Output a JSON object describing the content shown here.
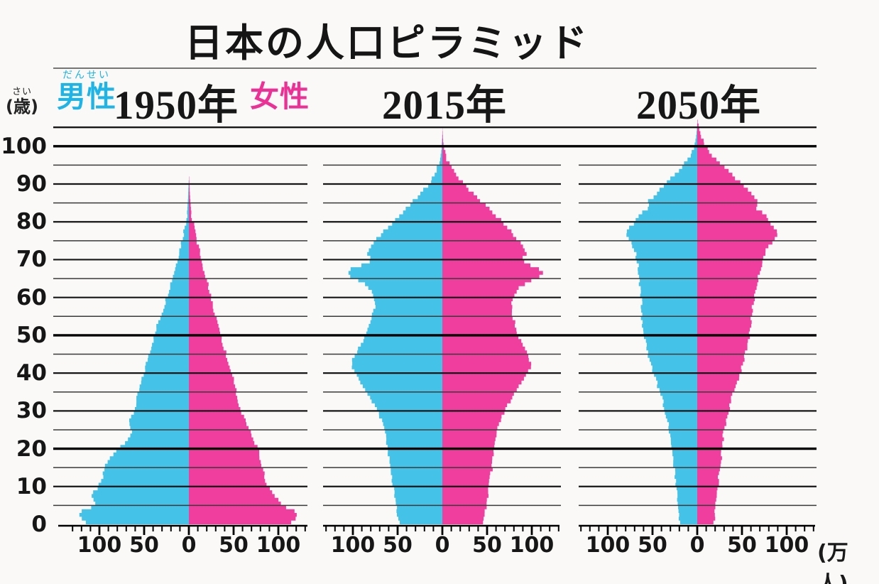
{
  "title": "日本の人口ピラミッド",
  "legend": {
    "male": {
      "label": "男性",
      "furigana": "だんせい",
      "text_color": "#1db4e8"
    },
    "female": {
      "label": "女性",
      "text_color": "#ee2f96"
    }
  },
  "panels": [
    {
      "year_label": "1950年"
    },
    {
      "year_label": "2015年"
    },
    {
      "year_label": "2050年"
    }
  ],
  "y_axis": {
    "unit_furigana": "さい",
    "unit_display": "(歳)",
    "tick_ages": [
      100,
      90,
      80,
      70,
      60,
      50,
      40,
      30,
      20,
      10,
      0
    ],
    "gridline_every": 5,
    "bold_ages": [
      100,
      50,
      20
    ],
    "max_age": 105
  },
  "x_axis": {
    "tick_values": [
      -100,
      -50,
      0,
      50,
      100
    ],
    "tick_labels": [
      "100",
      "50",
      "0",
      "50",
      "100"
    ],
    "minor_tick_value": 10,
    "unit": "(万人)"
  },
  "chart_data": {
    "type": "population-pyramid",
    "title": "日本の人口ピラミッド",
    "value_unit": "万人",
    "age_unit": "歳",
    "colors": {
      "male": "#45c2e8",
      "female": "#ef3e9d"
    },
    "age_axis": {
      "min": 0,
      "max": 105,
      "gridline_every": 5,
      "label_every": 10,
      "bold_gridlines_at": [
        100,
        50,
        20
      ]
    },
    "value_axis": {
      "tick_labels": [
        100,
        50,
        0,
        50,
        100
      ],
      "minor_tick": 10,
      "unit": "万人"
    },
    "pyramids": [
      {
        "year": "1950年",
        "male_points": [
          [
            0,
            112
          ],
          [
            1,
            118
          ],
          [
            2,
            122
          ],
          [
            3,
            123
          ],
          [
            4,
            116
          ],
          [
            5,
            104
          ],
          [
            6,
            106
          ],
          [
            8,
            108
          ],
          [
            10,
            101
          ],
          [
            12,
            96
          ],
          [
            14,
            95
          ],
          [
            16,
            93
          ],
          [
            18,
            86
          ],
          [
            20,
            79
          ],
          [
            22,
            70
          ],
          [
            24,
            64
          ],
          [
            26,
            67
          ],
          [
            28,
            65
          ],
          [
            30,
            61
          ],
          [
            33,
            58
          ],
          [
            36,
            55
          ],
          [
            40,
            50
          ],
          [
            44,
            46
          ],
          [
            48,
            41
          ],
          [
            50,
            38
          ],
          [
            53,
            35
          ],
          [
            56,
            30
          ],
          [
            60,
            25
          ],
          [
            64,
            20
          ],
          [
            68,
            15
          ],
          [
            72,
            11
          ],
          [
            76,
            7
          ],
          [
            80,
            3.5
          ],
          [
            83,
            1.8
          ],
          [
            86,
            1
          ],
          [
            88,
            0.6
          ],
          [
            90,
            0.3
          ],
          [
            91,
            0
          ]
        ],
        "female_points": [
          [
            0,
            112
          ],
          [
            1,
            117
          ],
          [
            2,
            121
          ],
          [
            3,
            121
          ],
          [
            4,
            114
          ],
          [
            5,
            103
          ],
          [
            6,
            102
          ],
          [
            8,
            95
          ],
          [
            10,
            89
          ],
          [
            12,
            85
          ],
          [
            14,
            83
          ],
          [
            16,
            81
          ],
          [
            18,
            79
          ],
          [
            20,
            77
          ],
          [
            22,
            72
          ],
          [
            24,
            69
          ],
          [
            26,
            66
          ],
          [
            28,
            62
          ],
          [
            30,
            58
          ],
          [
            33,
            55
          ],
          [
            36,
            52
          ],
          [
            40,
            48
          ],
          [
            44,
            43
          ],
          [
            48,
            38
          ],
          [
            50,
            36
          ],
          [
            53,
            33
          ],
          [
            56,
            29
          ],
          [
            60,
            25
          ],
          [
            64,
            21
          ],
          [
            68,
            16
          ],
          [
            72,
            12
          ],
          [
            76,
            8
          ],
          [
            80,
            4.5
          ],
          [
            83,
            2.5
          ],
          [
            86,
            1.5
          ],
          [
            88,
            1
          ],
          [
            90,
            0.6
          ],
          [
            91.5,
            0.3
          ],
          [
            92,
            0
          ]
        ]
      },
      {
        "year": "2015年",
        "male_points": [
          [
            0,
            48
          ],
          [
            3,
            50
          ],
          [
            5,
            51
          ],
          [
            8,
            53
          ],
          [
            10,
            55
          ],
          [
            13,
            57
          ],
          [
            15,
            59
          ],
          [
            18,
            60
          ],
          [
            20,
            61
          ],
          [
            23,
            63
          ],
          [
            25,
            65
          ],
          [
            28,
            69
          ],
          [
            30,
            73
          ],
          [
            33,
            80
          ],
          [
            36,
            88
          ],
          [
            38,
            93
          ],
          [
            40,
            98
          ],
          [
            42,
            102
          ],
          [
            44,
            100
          ],
          [
            46,
            95
          ],
          [
            48,
            90
          ],
          [
            50,
            87
          ],
          [
            52,
            83
          ],
          [
            54,
            80
          ],
          [
            56,
            77
          ],
          [
            58,
            75
          ],
          [
            60,
            76
          ],
          [
            62,
            79
          ],
          [
            64,
            90
          ],
          [
            65,
            100
          ],
          [
            66,
            106
          ],
          [
            67,
            105
          ],
          [
            68,
            98
          ],
          [
            69,
            85
          ],
          [
            70,
            79
          ],
          [
            71,
            82
          ],
          [
            72,
            84
          ],
          [
            74,
            78
          ],
          [
            76,
            71
          ],
          [
            78,
            64
          ],
          [
            80,
            55
          ],
          [
            82,
            46
          ],
          [
            84,
            38
          ],
          [
            86,
            30
          ],
          [
            88,
            22
          ],
          [
            90,
            15
          ],
          [
            92,
            10
          ],
          [
            94,
            6
          ],
          [
            96,
            3
          ],
          [
            98,
            1.5
          ],
          [
            100,
            0.7
          ],
          [
            102,
            0.3
          ],
          [
            103,
            0
          ]
        ],
        "female_points": [
          [
            0,
            46
          ],
          [
            3,
            48
          ],
          [
            5,
            49
          ],
          [
            8,
            51
          ],
          [
            10,
            52
          ],
          [
            13,
            54
          ],
          [
            15,
            56
          ],
          [
            18,
            57
          ],
          [
            20,
            58
          ],
          [
            23,
            60
          ],
          [
            25,
            62
          ],
          [
            28,
            66
          ],
          [
            30,
            70
          ],
          [
            33,
            77
          ],
          [
            36,
            85
          ],
          [
            38,
            90
          ],
          [
            40,
            95
          ],
          [
            42,
            99
          ],
          [
            44,
            97
          ],
          [
            46,
            93
          ],
          [
            48,
            88
          ],
          [
            50,
            85
          ],
          [
            52,
            82
          ],
          [
            54,
            80
          ],
          [
            56,
            78
          ],
          [
            58,
            77
          ],
          [
            60,
            79
          ],
          [
            62,
            83
          ],
          [
            64,
            95
          ],
          [
            65,
            106
          ],
          [
            66,
            113
          ],
          [
            67,
            112
          ],
          [
            68,
            104
          ],
          [
            69,
            93
          ],
          [
            70,
            88
          ],
          [
            71,
            92
          ],
          [
            72,
            94
          ],
          [
            74,
            88
          ],
          [
            76,
            82
          ],
          [
            78,
            75
          ],
          [
            80,
            67
          ],
          [
            82,
            58
          ],
          [
            84,
            50
          ],
          [
            86,
            41
          ],
          [
            88,
            32
          ],
          [
            90,
            24
          ],
          [
            92,
            17
          ],
          [
            94,
            11
          ],
          [
            96,
            6
          ],
          [
            98,
            3
          ],
          [
            100,
            1.5
          ],
          [
            102,
            0.7
          ],
          [
            104,
            0.3
          ],
          [
            105,
            0
          ]
        ]
      },
      {
        "year": "2050年",
        "male_points": [
          [
            0,
            20
          ],
          [
            3,
            21
          ],
          [
            5,
            22
          ],
          [
            8,
            23
          ],
          [
            10,
            24
          ],
          [
            13,
            25
          ],
          [
            15,
            26
          ],
          [
            18,
            28
          ],
          [
            20,
            29
          ],
          [
            23,
            30
          ],
          [
            25,
            31
          ],
          [
            28,
            34
          ],
          [
            30,
            36
          ],
          [
            33,
            39
          ],
          [
            35,
            42
          ],
          [
            38,
            46
          ],
          [
            40,
            49
          ],
          [
            43,
            52
          ],
          [
            45,
            55
          ],
          [
            48,
            58
          ],
          [
            50,
            60
          ],
          [
            53,
            61
          ],
          [
            55,
            62
          ],
          [
            58,
            62
          ],
          [
            60,
            63
          ],
          [
            63,
            64
          ],
          [
            65,
            65
          ],
          [
            68,
            66
          ],
          [
            70,
            68
          ],
          [
            72,
            69
          ],
          [
            74,
            73
          ],
          [
            76,
            78
          ],
          [
            77,
            79
          ],
          [
            78,
            77
          ],
          [
            80,
            70
          ],
          [
            82,
            63
          ],
          [
            83,
            58
          ],
          [
            84,
            52
          ],
          [
            85,
            56
          ],
          [
            86,
            52
          ],
          [
            88,
            44
          ],
          [
            90,
            35
          ],
          [
            92,
            27
          ],
          [
            94,
            19
          ],
          [
            96,
            12
          ],
          [
            98,
            7
          ],
          [
            100,
            3.5
          ],
          [
            102,
            1.5
          ],
          [
            104,
            0.6
          ],
          [
            106,
            0
          ]
        ],
        "female_points": [
          [
            0,
            19
          ],
          [
            3,
            20
          ],
          [
            5,
            21
          ],
          [
            8,
            22
          ],
          [
            10,
            23
          ],
          [
            13,
            24
          ],
          [
            15,
            25
          ],
          [
            18,
            27
          ],
          [
            20,
            28
          ],
          [
            23,
            29
          ],
          [
            25,
            30
          ],
          [
            28,
            33
          ],
          [
            30,
            35
          ],
          [
            33,
            38
          ],
          [
            35,
            41
          ],
          [
            38,
            45
          ],
          [
            40,
            48
          ],
          [
            43,
            51
          ],
          [
            45,
            54
          ],
          [
            48,
            57
          ],
          [
            50,
            58
          ],
          [
            53,
            60
          ],
          [
            55,
            61
          ],
          [
            58,
            62
          ],
          [
            60,
            64
          ],
          [
            63,
            66
          ],
          [
            65,
            68
          ],
          [
            68,
            71
          ],
          [
            70,
            73
          ],
          [
            72,
            76
          ],
          [
            74,
            82
          ],
          [
            76,
            88
          ],
          [
            77,
            89
          ],
          [
            78,
            87
          ],
          [
            80,
            81
          ],
          [
            82,
            75
          ],
          [
            83,
            70
          ],
          [
            84,
            64
          ],
          [
            85,
            70
          ],
          [
            86,
            66
          ],
          [
            88,
            58
          ],
          [
            90,
            50
          ],
          [
            92,
            41
          ],
          [
            94,
            32
          ],
          [
            96,
            23
          ],
          [
            98,
            15
          ],
          [
            100,
            9
          ],
          [
            102,
            5
          ],
          [
            103,
            3.5
          ],
          [
            104,
            2.5
          ],
          [
            105,
            2
          ],
          [
            106,
            1
          ],
          [
            107,
            0
          ]
        ]
      }
    ]
  }
}
